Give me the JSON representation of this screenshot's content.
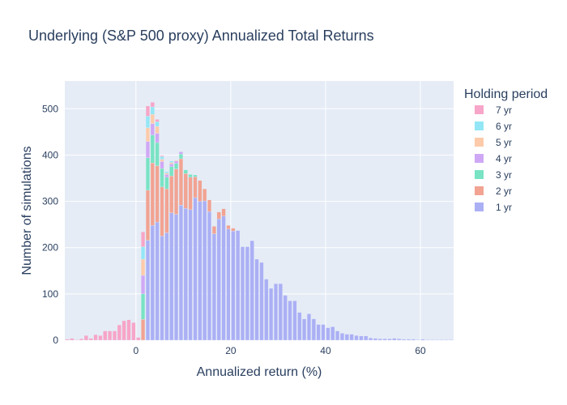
{
  "chart_data": {
    "type": "bar",
    "barmode": "stack",
    "title": "Underlying (S&P 500 proxy) Annualized Total Returns",
    "xlabel": "Annualized return (%)",
    "ylabel": "Number of simulations",
    "xlim": [
      -15,
      67
    ],
    "ylim": [
      0,
      560
    ],
    "x_ticks": [
      0,
      20,
      40,
      60
    ],
    "y_ticks": [
      0,
      100,
      200,
      300,
      400,
      500
    ],
    "grid": true,
    "bin_width": 1,
    "legend": {
      "title": "Holding period",
      "placement": "top-right"
    },
    "series": [
      {
        "name": "1 yr",
        "color": "#abb0f5",
        "x": [
          2.5,
          3.5,
          4.5,
          5.5,
          6.5,
          7.5,
          8.5,
          9.5,
          10.5,
          11.5,
          12.5,
          13.5,
          14.5,
          15.5,
          16.5,
          17.5,
          18.5,
          19.5,
          20.5,
          21.5,
          22.5,
          23.5,
          24.5,
          25.5,
          26.5,
          27.5,
          28.5,
          29.5,
          30.5,
          31.5,
          32.5,
          33.5,
          34.5,
          35.5,
          36.5,
          37.5,
          38.5,
          39.5,
          40.5,
          41.5,
          42.5,
          43.5,
          44.5,
          45.5,
          46.5,
          47.5,
          48.5,
          49.5,
          50.5,
          51.5,
          52.5,
          53.5,
          54.5,
          55.5,
          56.5,
          57.5,
          58.5,
          59.5,
          60.5,
          61.5,
          62.5,
          63.5,
          64.5,
          65.5,
          66.5
        ],
        "values": [
          216,
          248,
          255,
          225,
          232,
          275,
          272,
          292,
          285,
          282,
          308,
          300,
          301,
          278,
          230,
          262,
          268,
          240,
          236,
          237,
          202,
          202,
          215,
          175,
          168,
          132,
          112,
          122,
          122,
          97,
          85,
          85,
          60,
          46,
          57,
          46,
          34,
          34,
          27,
          29,
          20,
          15,
          13,
          13,
          10,
          9,
          9,
          5,
          4,
          3,
          3,
          3,
          4,
          3,
          2,
          2,
          2,
          1,
          2,
          1,
          1,
          1,
          1,
          1,
          1
        ]
      },
      {
        "name": "2 yr",
        "color": "#f2a392",
        "x": [
          1.5,
          2.5,
          3.5,
          4.5,
          5.5,
          6.5,
          7.5,
          8.5,
          9.5,
          10.5,
          11.5,
          12.5,
          13.5,
          14.5,
          15.5,
          16.5,
          17.5,
          18.5,
          19.5,
          20.5
        ],
        "values": [
          45,
          108,
          135,
          122,
          106,
          95,
          80,
          98,
          100,
          75,
          70,
          45,
          45,
          26,
          25,
          16,
          15,
          16,
          8,
          6
        ]
      },
      {
        "name": "3 yr",
        "color": "#79e3c4",
        "x": [
          1.5,
          2.5,
          3.5,
          4.5,
          5.5,
          6.5,
          7.5,
          8.5,
          9.5,
          10.5,
          11.5,
          12.5
        ],
        "values": [
          55,
          70,
          60,
          50,
          40,
          25,
          20,
          12,
          10,
          8,
          6,
          4
        ]
      },
      {
        "name": "4 yr",
        "color": "#cfa8f5",
        "x": [
          1.5,
          2.5,
          3.5,
          4.5,
          5.5,
          6.5,
          7.5,
          8.5,
          9.5
        ],
        "values": [
          40,
          35,
          25,
          20,
          15,
          6,
          6,
          5,
          5
        ]
      },
      {
        "name": "5 yr",
        "color": "#fdcbaa",
        "x": [
          1.5,
          2.5,
          3.5,
          4.5,
          5.5,
          6.5,
          7.5,
          8.5
        ],
        "values": [
          35,
          30,
          20,
          15,
          5,
          3,
          3,
          2
        ]
      },
      {
        "name": "6 yr",
        "color": "#93e6f5",
        "x": [
          1.5,
          2.5,
          3.5,
          4.5,
          5.5,
          6.5,
          7.5
        ],
        "values": [
          27,
          25,
          16,
          10,
          6,
          3,
          3
        ]
      },
      {
        "name": "7 yr",
        "color": "#f7a5c8",
        "x": [
          -14.5,
          -13.5,
          -12.5,
          -11.5,
          -10.5,
          -9.5,
          -8.5,
          -7.5,
          -6.5,
          -5.5,
          -4.5,
          -3.5,
          -2.5,
          -1.5,
          -0.5,
          0.5,
          1.5,
          2.5,
          3.5,
          4.5,
          5.5
        ],
        "values": [
          2,
          4,
          1,
          3,
          10,
          4,
          12,
          10,
          20,
          20,
          20,
          33,
          42,
          44,
          38,
          6,
          32,
          22,
          10,
          5,
          2
        ]
      }
    ]
  }
}
